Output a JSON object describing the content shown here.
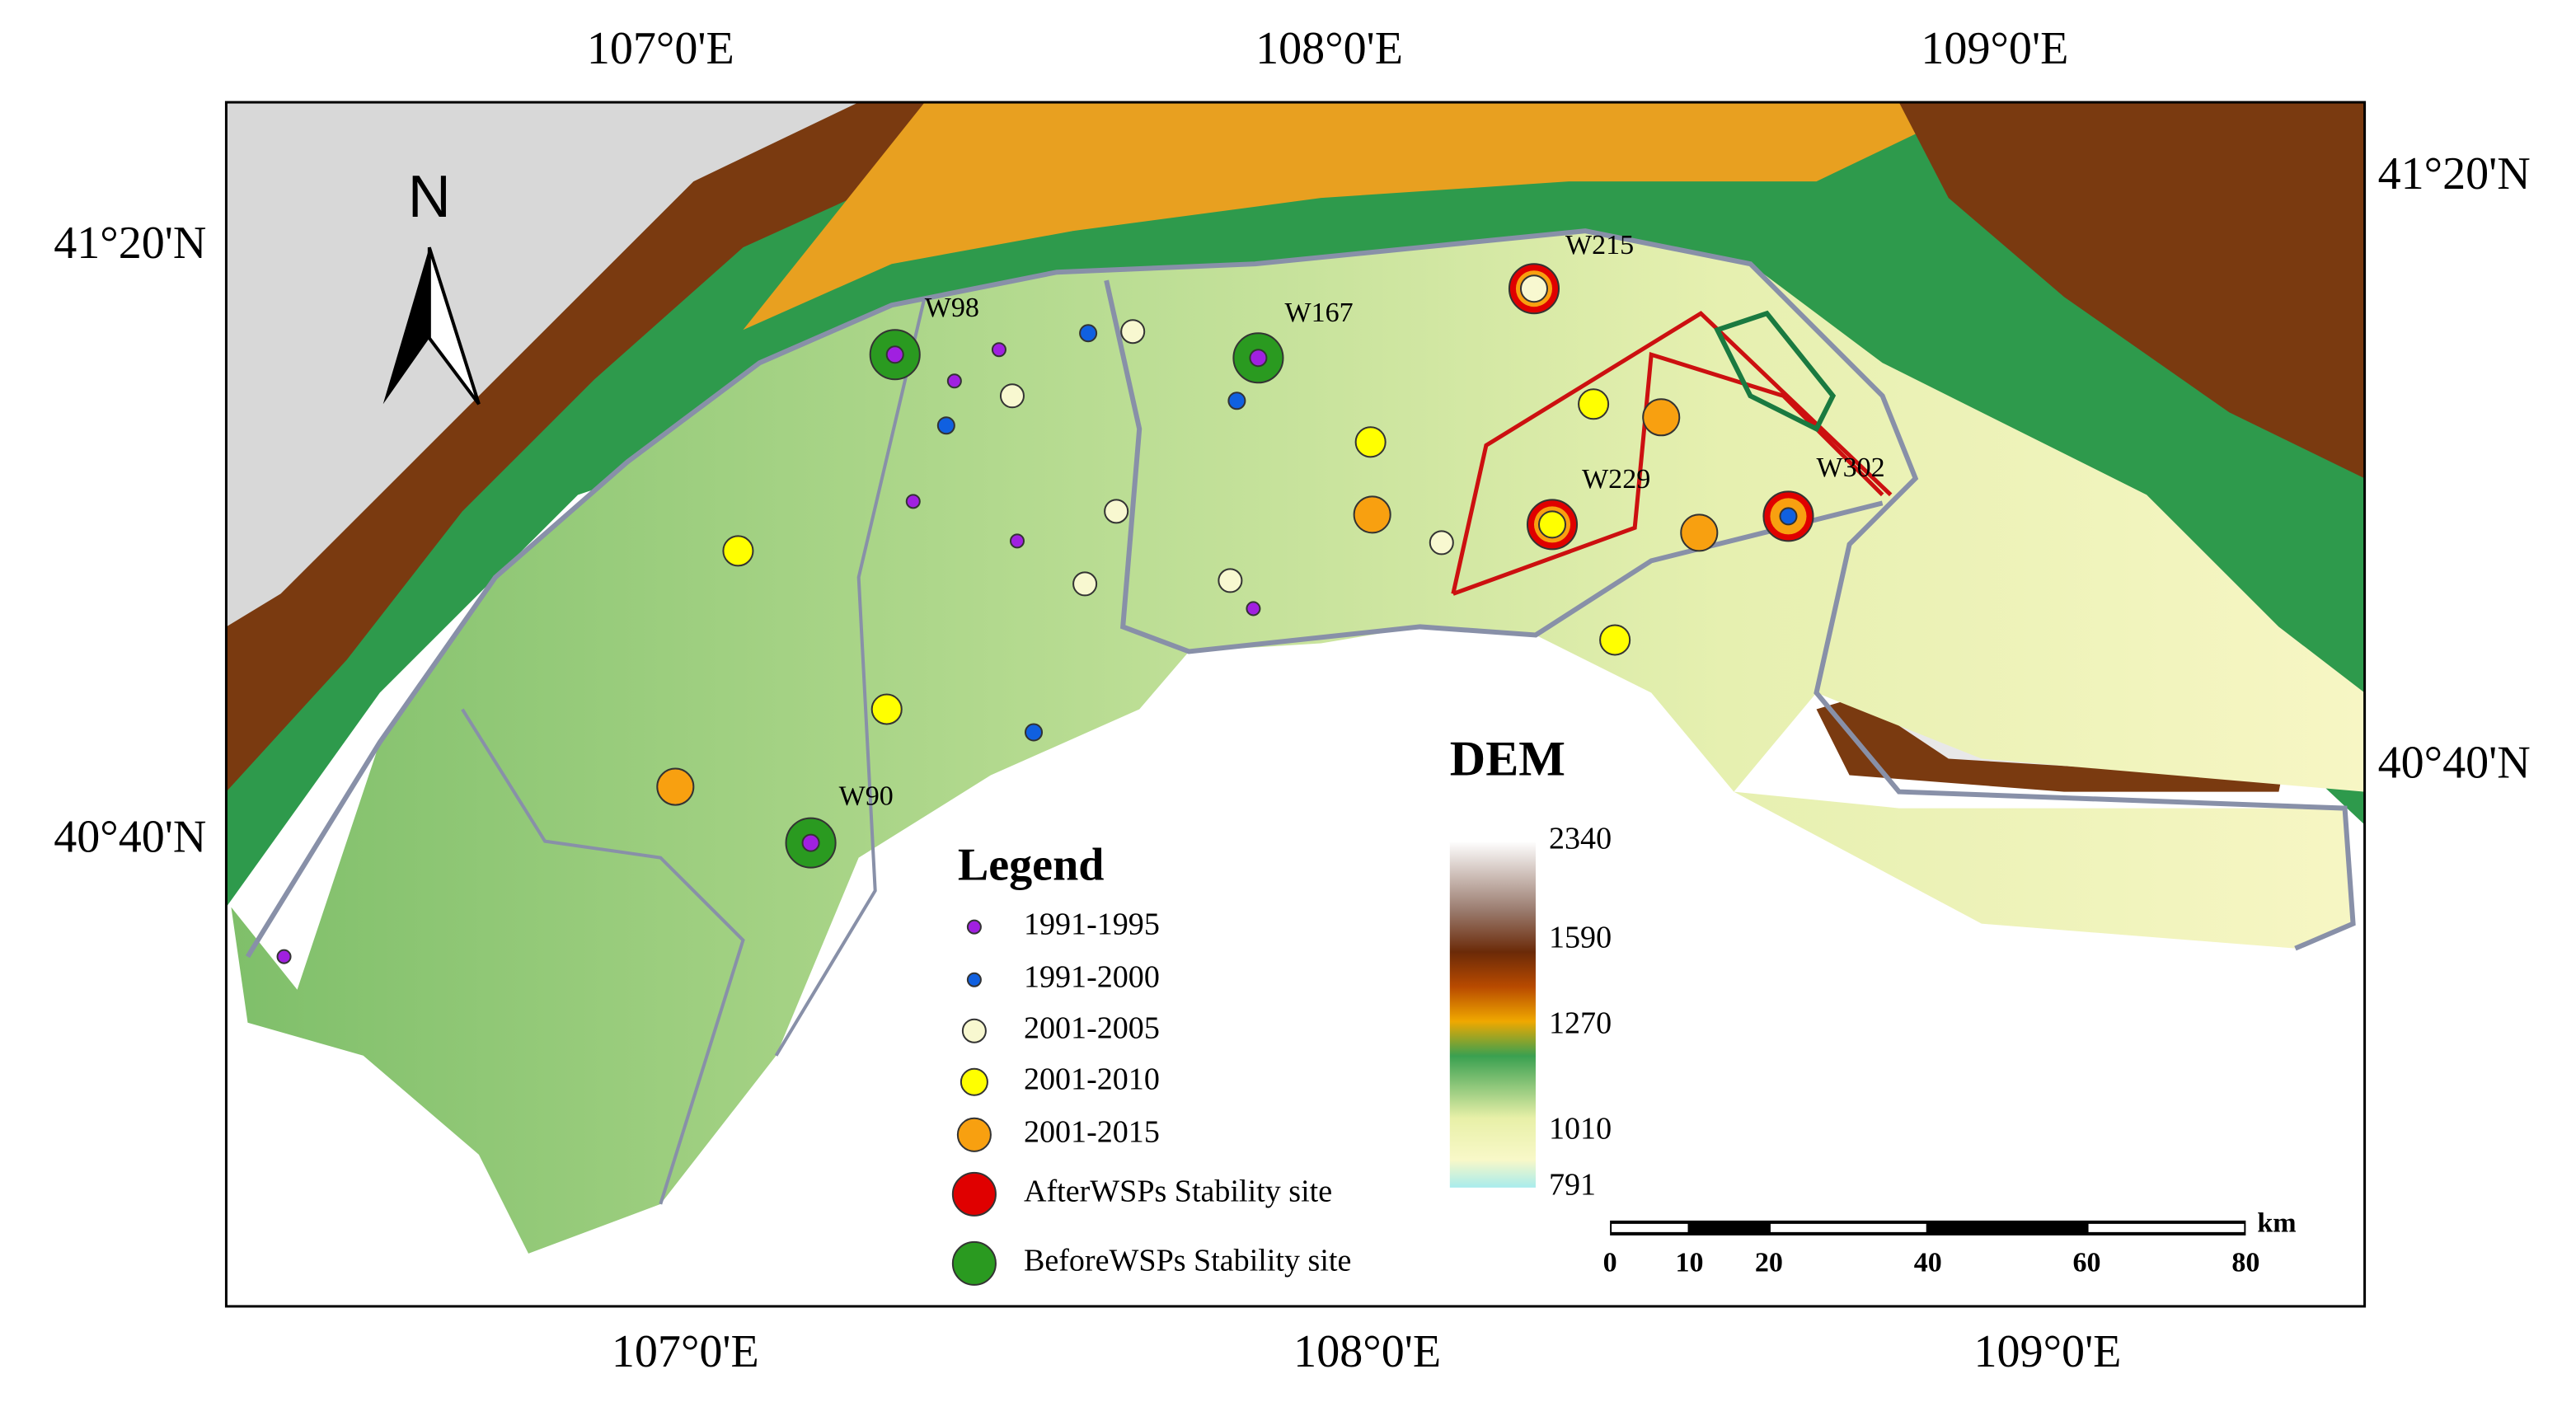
{
  "map": {
    "north_arrow": "N",
    "lon_labels": [
      "107°0'E",
      "108°0'E",
      "109°0'E"
    ],
    "lat_labels": [
      "41°20'N",
      "40°40'N"
    ],
    "site_labels": [
      "W215",
      "W98",
      "W167",
      "W229",
      "W302",
      "W90"
    ],
    "legend": {
      "title": "Legend",
      "items": [
        "1991-1995",
        "1991-2000",
        "2001-2005",
        "2001-2010",
        "2001-2015",
        "AfterWSPs Stability site",
        "BeforeWSPs Stability site"
      ]
    },
    "dem": {
      "title": "DEM",
      "ticks": [
        2340,
        1590,
        1270,
        1010,
        791
      ]
    },
    "scale_bar": {
      "unit": "km",
      "ticks": [
        0,
        10,
        20,
        40,
        60,
        80
      ]
    }
  }
}
